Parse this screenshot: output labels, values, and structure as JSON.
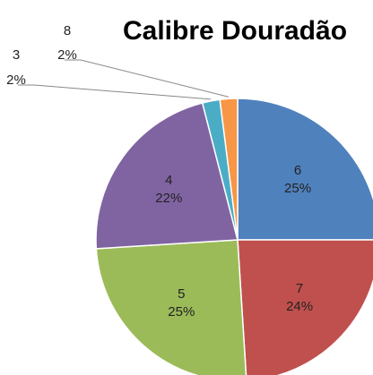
{
  "chart_data": {
    "type": "pie",
    "title": "Calibre Douradão",
    "categories": [
      "6",
      "7",
      "5",
      "4",
      "3",
      "8"
    ],
    "values": [
      25,
      24,
      25,
      22,
      2,
      2
    ],
    "value_labels": [
      "25%",
      "24%",
      "25%",
      "22%",
      "2%",
      "2%"
    ],
    "colors": [
      "#4f81bd",
      "#c0504d",
      "#9bbb59",
      "#8064a2",
      "#4bacc6",
      "#f79646"
    ]
  }
}
